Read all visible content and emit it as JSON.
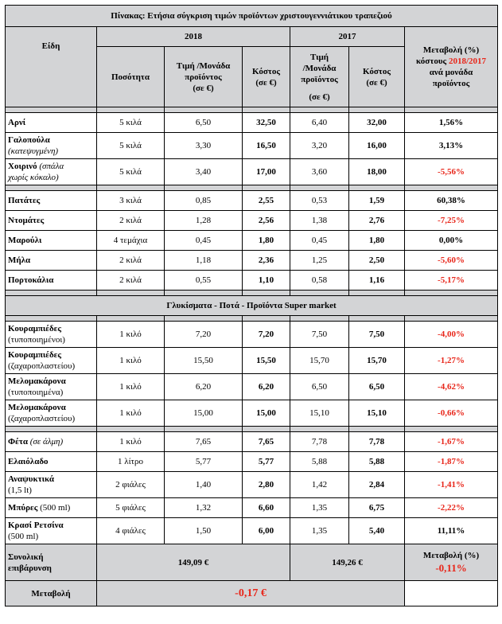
{
  "title": "Πίνακας: Ετήσια σύγκριση τιμών προϊόντων χριστουγεννιάτικου τραπεζιού",
  "header": {
    "items": "Είδη",
    "year_2018": "2018",
    "year_2017": "2017",
    "change_line1": "Μεταβολή (%)",
    "change_line2": "κόστους",
    "change_years": "2018/2017",
    "change_line3": "ανά μονάδα",
    "change_line4": "προϊόντος",
    "quantity": "Ποσότητα",
    "price_2018_l1": "Τιμή /Μονάδα",
    "price_2018_l2": "προϊόντος",
    "price_2018_l3": "(σε €)",
    "cost_2018_l1": "Κόστος",
    "cost_2018_l2": "(σε €)",
    "price_2017_l1": "Τιμή",
    "price_2017_l2": "/Μονάδα",
    "price_2017_l3": "προϊόντος",
    "price_2017_l4": "(σε €)",
    "cost_2017_l1": "Κόστος",
    "cost_2017_l2": "(σε €)"
  },
  "groups": [
    [
      {
        "name": "Αρνί",
        "qty": "5  κιλά",
        "p18": "6,50",
        "c18": "32,50",
        "p17": "6,40",
        "c17": "32,00",
        "chg": "1,56%",
        "neg": false
      },
      {
        "name": "Γαλοπούλα",
        "note": "(κατεψυγμένη)",
        "qty": "5  κιλά",
        "p18": "3,30",
        "c18": "16,50",
        "p17": "3,20",
        "c17": "16,00",
        "chg": "3,13%",
        "neg": false
      },
      {
        "name": "Χοιρινό",
        "note": "(σπάλα",
        "note2": "χωρίς κόκαλο)",
        "qty": "5  κιλά",
        "p18": "3,40",
        "c18": "17,00",
        "p17": "3,60",
        "c17": "18,00",
        "chg": "-5,56%",
        "neg": true
      }
    ],
    [
      {
        "name": "Πατάτες",
        "qty": "3  κιλά",
        "p18": "0,85",
        "c18": "2,55",
        "p17": "0,53",
        "c17": "1,59",
        "chg": "60,38%",
        "neg": false
      },
      {
        "name": "Ντομάτες",
        "qty": "2  κιλά",
        "p18": "1,28",
        "c18": "2,56",
        "p17": "1,38",
        "c17": "2,76",
        "chg": "-7,25%",
        "neg": true
      },
      {
        "name": "Μαρούλι",
        "qty": "4  τεμάχια",
        "p18": "0,45",
        "c18": "1,80",
        "p17": "0,45",
        "c17": "1,80",
        "chg": "0,00%",
        "neg": false
      },
      {
        "name": "Μήλα",
        "qty": "2  κιλά",
        "p18": "1,18",
        "c18": "2,36",
        "p17": "1,25",
        "c17": "2,50",
        "chg": "-5,60%",
        "neg": true
      },
      {
        "name": "Πορτοκάλια",
        "qty": "2  κιλά",
        "p18": "0,55",
        "c18": "1,10",
        "p17": "0,58",
        "c17": "1,16",
        "chg": "-5,17%",
        "neg": true
      }
    ]
  ],
  "section_title": "Γλυκίσματα -  Ποτά - Προϊόντα Super market",
  "groups2": [
    [
      {
        "name": "Κουραμπιέδες",
        "plain": "(τυποποιημένοι)",
        "qty": "1 κιλό",
        "p18": "7,20",
        "c18": "7,20",
        "p17": "7,50",
        "c17": "7,50",
        "chg": "-4,00%",
        "neg": true
      },
      {
        "name": "Κουραμπιέδες",
        "plain": "(ζαχαροπλαστείου)",
        "qty": "1 κιλό",
        "p18": "15,50",
        "c18": "15,50",
        "p17": "15,70",
        "c17": "15,70",
        "chg": "-1,27%",
        "neg": true
      },
      {
        "name": "Μελομακάρονα",
        "plain": "(τυποποιημένα)",
        "qty": "1 κιλό",
        "p18": "6,20",
        "c18": "6,20",
        "p17": "6,50",
        "c17": "6,50",
        "chg": "-4,62%",
        "neg": true
      },
      {
        "name": "Μελομακάρονα",
        "plain": "(ζαχαροπλαστείου)",
        "qty": "1 κιλό",
        "p18": "15,00",
        "c18": "15,00",
        "p17": "15,10",
        "c17": "15,10",
        "chg": "-0,66%",
        "neg": true
      }
    ],
    [
      {
        "name": "Φέτα",
        "note": "(σε άλμη)",
        "qty": "1  κιλό",
        "p18": "7,65",
        "c18": "7,65",
        "p17": "7,78",
        "c17": "7,78",
        "chg": "-1,67%",
        "neg": true
      },
      {
        "name": "Ελαιόλαδο",
        "qty": "1  λίτρο",
        "p18": "5,77",
        "c18": "5,77",
        "p17": "5,88",
        "c17": "5,88",
        "chg": "-1,87%",
        "neg": true
      },
      {
        "name": "Αναψυκτικά",
        "plain": "(1,5 lt)",
        "qty": "2 φιάλες",
        "p18": "1,40",
        "c18": "2,80",
        "p17": "1,42",
        "c17": "2,84",
        "chg": "-1,41%",
        "neg": true
      },
      {
        "name": "Μπύρες",
        "inline": " (500 ml)",
        "qty": "5 φιάλες",
        "p18": "1,32",
        "c18": "6,60",
        "p17": "1,35",
        "c17": "6,75",
        "chg": "-2,22%",
        "neg": true
      },
      {
        "name": "Κρασί Ρετσίνα",
        "plain": "(500 ml)",
        "qty": "4 φιάλες",
        "p18": "1,50",
        "c18": "6,00",
        "p17": "1,35",
        "c17": "5,40",
        "chg": "11,11%",
        "neg": false
      }
    ]
  ],
  "total": {
    "label_l1": "Συνολική",
    "label_l2": "επιβάρυνση",
    "t2018": "149,09 €",
    "t2017": "149,26 €",
    "chg_label": "Μεταβολή (%)",
    "chg_value": "-0,11%"
  },
  "diff": {
    "label": "Μεταβολή",
    "value": "-0,17 €"
  }
}
